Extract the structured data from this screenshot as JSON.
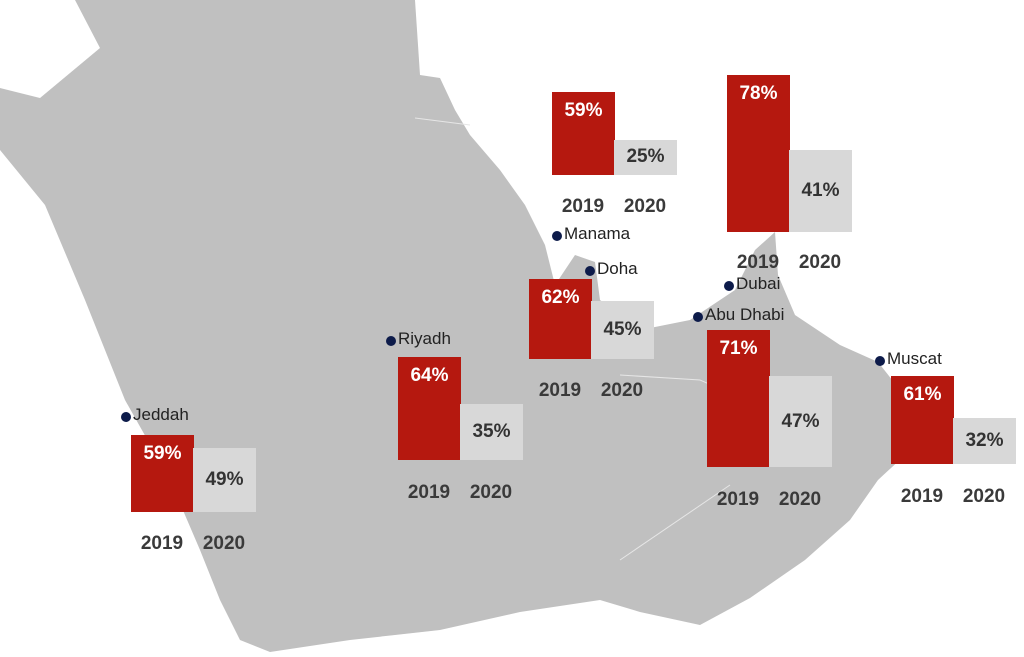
{
  "colors": {
    "land": "#c0c0c0",
    "y2019": "#b5180f",
    "y2020": "#d8d8d8",
    "dot": "#0d1b4a"
  },
  "chart_data": {
    "type": "bar",
    "categories": [
      "2019",
      "2020"
    ],
    "unit": "%",
    "cities": [
      {
        "name": "Manama",
        "values": [
          59,
          25
        ],
        "labels": [
          "59%",
          "25%"
        ]
      },
      {
        "name": "Dubai",
        "values": [
          78,
          41
        ],
        "labels": [
          "78%",
          "41%"
        ]
      },
      {
        "name": "Doha",
        "values": [
          62,
          45
        ],
        "labels": [
          "62%",
          "45%"
        ]
      },
      {
        "name": "Abu Dhabi",
        "values": [
          71,
          47
        ],
        "labels": [
          "71%",
          "47%"
        ]
      },
      {
        "name": "Muscat",
        "values": [
          61,
          32
        ],
        "labels": [
          "61%",
          "32%"
        ]
      },
      {
        "name": "Riyadh",
        "values": [
          64,
          35
        ],
        "labels": [
          "64%",
          "35%"
        ]
      },
      {
        "name": "Jeddah",
        "values": [
          59,
          49
        ],
        "labels": [
          "59%",
          "49%"
        ]
      }
    ]
  }
}
